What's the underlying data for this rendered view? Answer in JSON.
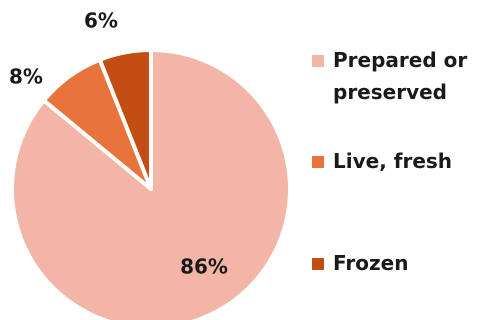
{
  "chart_data": {
    "type": "pie",
    "title": "",
    "slices": [
      {
        "label": "Prepared or preserved",
        "label_lines": [
          "Prepared or",
          "preserved"
        ],
        "value": 86,
        "display": "86%",
        "color": "#f2b5a6"
      },
      {
        "label": "Live, fresh",
        "label_lines": [
          "Live, fresh"
        ],
        "value": 8,
        "display": "8%",
        "color": "#e8743b"
      },
      {
        "label": "Frozen",
        "label_lines": [
          "Frozen"
        ],
        "value": 6,
        "display": "6%",
        "color": "#c44d14"
      }
    ],
    "legend_placement": "right"
  }
}
